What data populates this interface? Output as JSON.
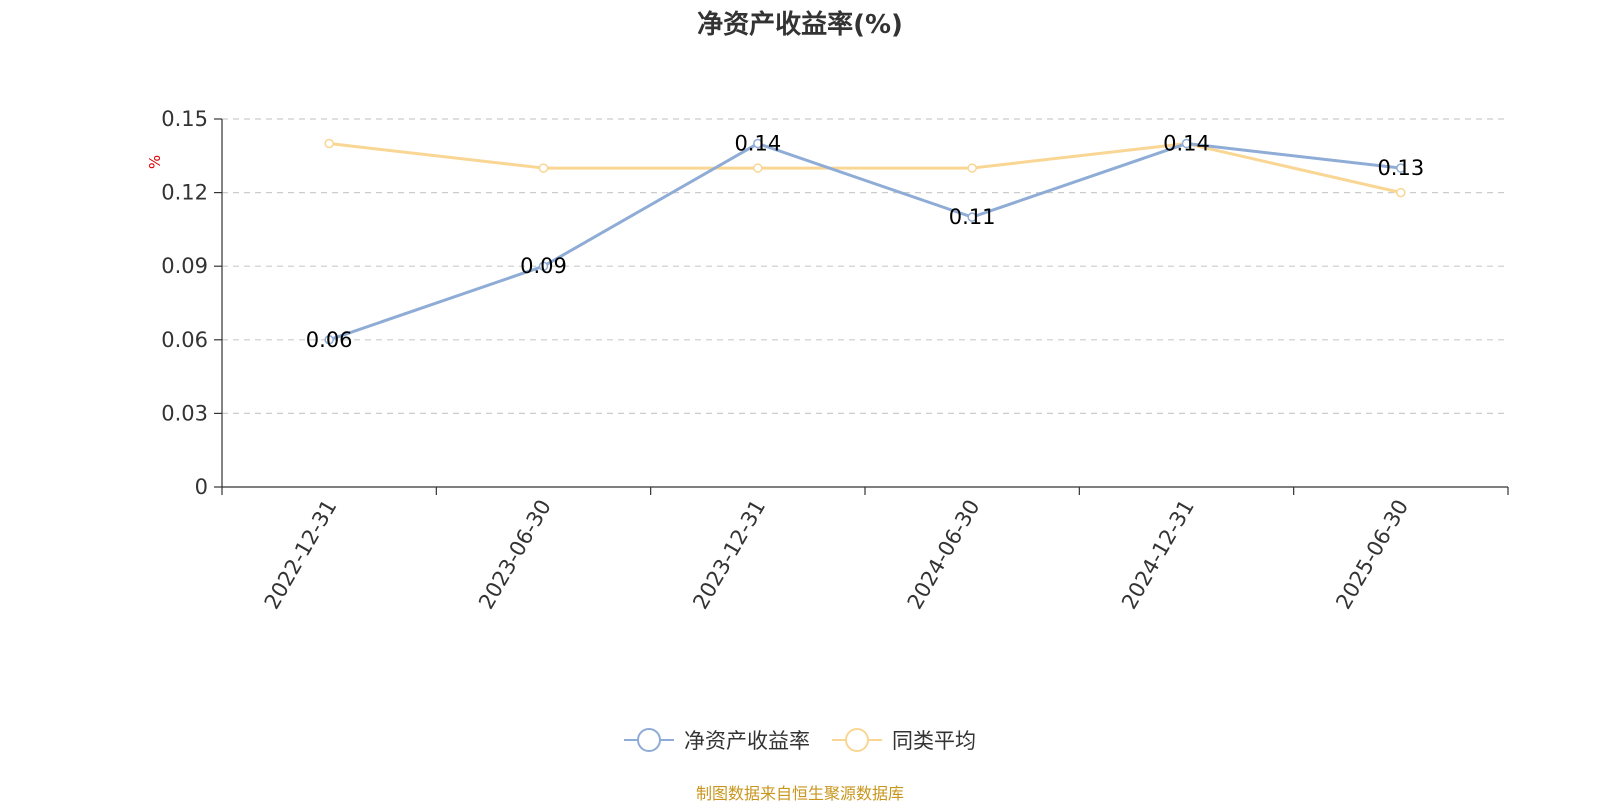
{
  "title": "净资产收益率(%)",
  "source_note": "制图数据来自恒生聚源数据库",
  "colors": {
    "series1": "#8eacd6",
    "series2": "#f9d693",
    "axis": "#333333",
    "grid": "#cccccc",
    "unit": "#e00000"
  },
  "chart_data": {
    "type": "line",
    "title": "净资产收益率(%)",
    "ylabel": "%",
    "categories": [
      "2022-12-31",
      "2023-06-30",
      "2023-12-31",
      "2024-06-30",
      "2024-12-31",
      "2025-06-30"
    ],
    "ylim": [
      0,
      0.15
    ],
    "yticks": [
      "0",
      "0.03",
      "0.06",
      "0.09",
      "0.12",
      "0.15"
    ],
    "grid": true,
    "legend_position": "bottom",
    "series": [
      {
        "name": "净资产收益率",
        "values": [
          0.06,
          0.09,
          0.14,
          0.11,
          0.14,
          0.13
        ],
        "labels": [
          "0.06",
          "0.09",
          "0.14",
          "0.11",
          "0.14",
          "0.13"
        ],
        "show_labels": true
      },
      {
        "name": "同类平均",
        "values": [
          0.14,
          0.13,
          0.13,
          0.13,
          0.14,
          0.12
        ],
        "show_labels": false
      }
    ]
  }
}
